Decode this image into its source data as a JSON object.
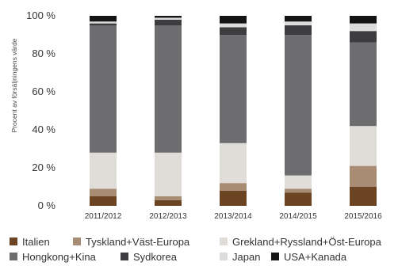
{
  "chart_data": {
    "type": "bar",
    "stacked": true,
    "categories": [
      "2011/2012",
      "2012/2013",
      "2013/2014",
      "2014/2015",
      "2015/2016"
    ],
    "ylabel": "Procent av försäljningens värde",
    "ylim": [
      0,
      100
    ],
    "yticks": [
      "0 %",
      "20 %",
      "40 %",
      "60 %",
      "80 %",
      "100 %"
    ],
    "grid": false,
    "legend_position": "bottom",
    "series": [
      {
        "name": "Italien",
        "color": "#6b4423",
        "values": [
          5,
          3,
          8,
          7,
          10
        ]
      },
      {
        "name": "Tyskland+Väst-Europa",
        "color": "#a98c74",
        "values": [
          4,
          2,
          4,
          2,
          11
        ]
      },
      {
        "name": "Grekland+Ryssland+Öst-Europa",
        "color": "#e0dcd8",
        "values": [
          19,
          23,
          21,
          7,
          21
        ]
      },
      {
        "name": "Hongkong+Kina",
        "color": "#6d6d70",
        "values": [
          67,
          67,
          57,
          74,
          44
        ]
      },
      {
        "name": "Sydkorea",
        "color": "#3d3d40",
        "values": [
          1,
          3,
          4,
          5,
          6
        ]
      },
      {
        "name": "Japan",
        "color": "#dcdcdc",
        "values": [
          1,
          1,
          2,
          2,
          4
        ]
      },
      {
        "name": "USA+Kanada",
        "color": "#151515",
        "values": [
          3,
          1,
          4,
          3,
          4
        ]
      }
    ]
  }
}
